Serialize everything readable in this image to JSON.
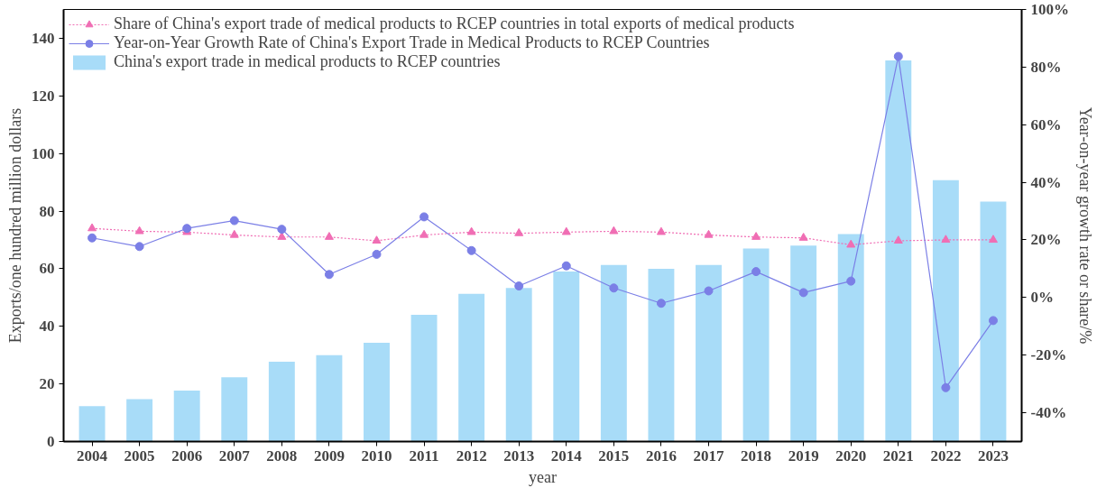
{
  "chart_data": {
    "type": "bar",
    "xlabel": "year",
    "ylabel": "Exports/one hundred million dollars",
    "y2label": "Year-on-year growth rate or share/%",
    "categories": [
      "2004",
      "2005",
      "2006",
      "2007",
      "2008",
      "2009",
      "2010",
      "2011",
      "2012",
      "2013",
      "2014",
      "2015",
      "2016",
      "2017",
      "2018",
      "2019",
      "2020",
      "2021",
      "2022",
      "2023"
    ],
    "series": [
      {
        "name": "Share of China's export trade of medical products to RCEP countries in total exports of medical products",
        "type": "line",
        "axis": "y2",
        "color": "#f06eb4",
        "marker": "triangle",
        "line_style": "dotted",
        "values": [
          24,
          23,
          22.7,
          21.7,
          21,
          21,
          19.7,
          21.7,
          22.7,
          22.3,
          22.7,
          23,
          22.7,
          21.7,
          21,
          20.7,
          18.3,
          19.7,
          20,
          20
        ]
      },
      {
        "name": "Year-on-Year Growth Rate of China's Export Trade in Medical Products to RCEP Countries",
        "type": "line",
        "axis": "y2",
        "color": "#7b7fe6",
        "marker": "circle",
        "line_style": "solid",
        "values": [
          20.7,
          17.7,
          24,
          26.7,
          23.7,
          8,
          15,
          28,
          16.3,
          4,
          11,
          3.3,
          -2,
          2.3,
          9,
          1.7,
          5.7,
          83.7,
          -31.3,
          -8
        ]
      },
      {
        "name": "China's export trade in medical products to RCEP countries",
        "color": "#a8dcf8",
        "values": [
          12.3,
          14.7,
          17.7,
          22.3,
          27.7,
          30,
          34.3,
          44,
          51.3,
          53.3,
          59,
          61.3,
          60,
          61.3,
          67,
          68,
          72,
          132.3,
          90.7,
          83.3
        ]
      }
    ],
    "ylim": [
      0,
      150
    ],
    "yticks": [
      0,
      20,
      40,
      60,
      80,
      100,
      120,
      140
    ],
    "y2lim": [
      -50,
      100
    ],
    "y2ticks": [
      {
        "value": -40,
        "label": "-40%"
      },
      {
        "value": -20,
        "label": "-20%"
      },
      {
        "value": 0,
        "label": "0%"
      },
      {
        "value": 20,
        "label": "20%"
      },
      {
        "value": 40,
        "label": "40%"
      },
      {
        "value": 60,
        "label": "60%"
      },
      {
        "value": 80,
        "label": "80%"
      },
      {
        "value": 100,
        "label": "100%"
      }
    ],
    "grid": false,
    "legend": "top left"
  }
}
